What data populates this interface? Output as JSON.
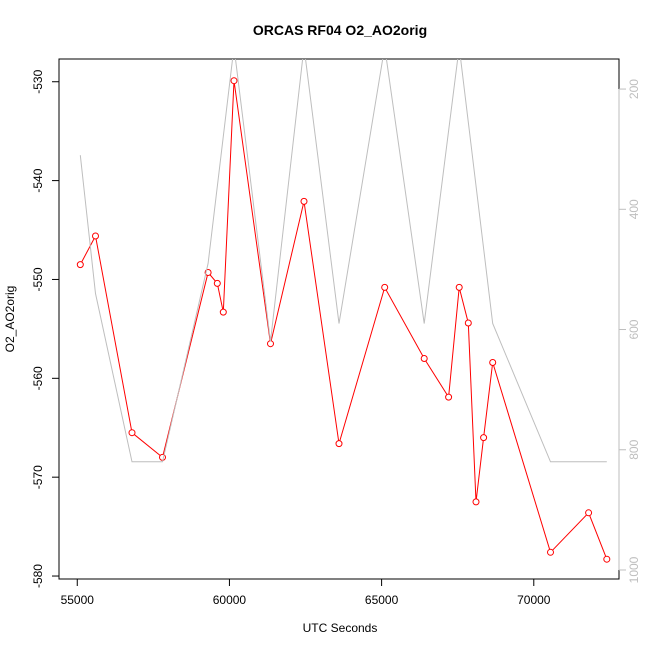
{
  "chart_data": {
    "type": "line",
    "title": "ORCAS RF04 O2_AO2orig",
    "xlabel": "UTC Seconds",
    "ylabel": "O2_AO2orig",
    "xlim": [
      54400,
      72800
    ],
    "ylim": [
      -580.3,
      -527.7
    ],
    "y2lim": [
      1015,
      150
    ],
    "x_ticks": [
      55000,
      60000,
      65000,
      70000
    ],
    "y_ticks": [
      -580,
      -570,
      -560,
      -550,
      -540,
      -530
    ],
    "y2_ticks": [
      200,
      400,
      600,
      800,
      1000
    ],
    "grid": false,
    "series": [
      {
        "color": "#ff0000",
        "axis": "left",
        "markers": "open-circle",
        "x": [
          55100,
          55600,
          56800,
          57800,
          59300,
          59600,
          59800,
          60150,
          61350,
          62450,
          63600,
          65100,
          66400,
          67200,
          67550,
          67850,
          68100,
          68350,
          68650,
          70550,
          71800,
          72400
        ],
        "y": [
          -548.5,
          -545.6,
          -565.5,
          -568.0,
          -549.3,
          -550.4,
          -553.3,
          -529.9,
          -556.5,
          -542.1,
          -566.6,
          -550.8,
          -558.0,
          -561.9,
          -550.8,
          -554.4,
          -572.5,
          -566.0,
          -558.4,
          -577.6,
          -573.6,
          -578.3
        ]
      },
      {
        "color": "#bebebe",
        "axis": "right",
        "markers": "none",
        "x": [
          55100,
          55600,
          56800,
          57800,
          59300,
          60150,
          61350,
          62450,
          63600,
          65100,
          66400,
          67550,
          68650,
          70550,
          71800,
          72400
        ],
        "y": [
          310,
          540,
          820,
          820,
          490,
          130,
          620,
          130,
          590,
          130,
          590,
          130,
          590,
          820,
          820,
          820
        ]
      }
    ]
  }
}
